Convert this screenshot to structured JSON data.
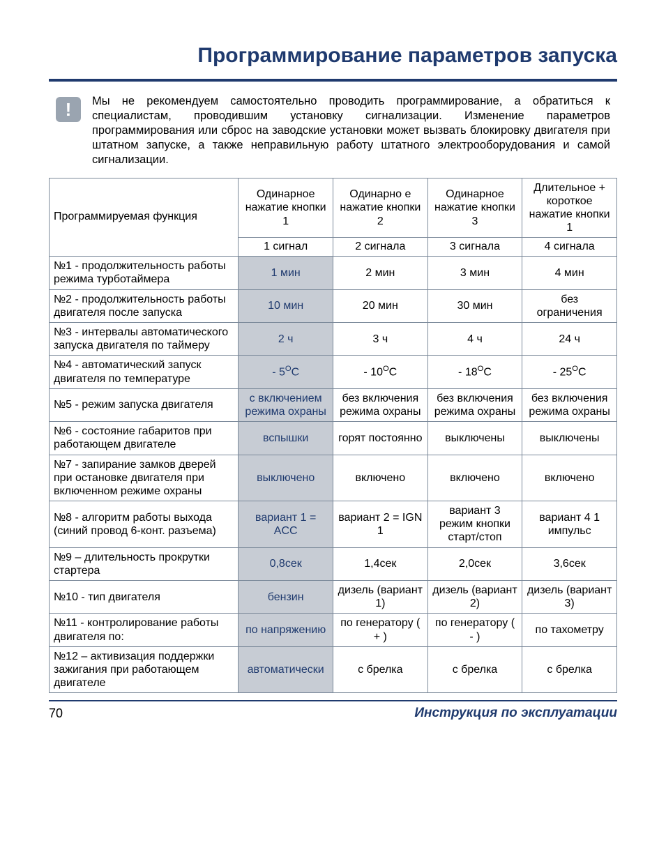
{
  "title": "Программирование параметров запуска",
  "notice": "Мы не рекомендуем самостоятельно проводить программирование, а обратиться к специалистам, проводившим установку сигнализации. Изменение параметров программирования или сброс на заводские установки может вызвать блокировку двигателя при штатном запуске, а также неправильную работу штатного электрооборудования и самой сигнализации.",
  "table": {
    "func_header": "Программируемая функция",
    "col_headers": [
      "Одинарное нажатие кнопки 1",
      "Одинарно е нажатие кнопки 2",
      "Одинарное нажатие кнопки 3",
      "Длительное + короткое нажатие кнопки 1"
    ],
    "signals": [
      "1 сигнал",
      "2 сигнала",
      "3 сигнала",
      "4 сигнала"
    ],
    "rows": [
      {
        "func": "№1 - продолжительность работы режима турботаймера",
        "opts": [
          "1 мин",
          "2 мин",
          "3 мин",
          "4 мин"
        ],
        "default": 0
      },
      {
        "func": "№2 - продолжительность работы двигателя после запуска",
        "opts": [
          "10 мин",
          "20 мин",
          "30 мин",
          "без ограничения"
        ],
        "default": 0
      },
      {
        "func": "№3 - интервалы автоматического запуска двигателя по таймеру",
        "opts": [
          "2 ч",
          "3 ч",
          "4 ч",
          "24 ч"
        ],
        "default": 0
      },
      {
        "func": "№4 - автоматический запуск двигателя по температуре",
        "opts": [
          "- 5°C",
          "- 10°C",
          "- 18°C",
          "- 25°C"
        ],
        "default": 0,
        "celsius": true
      },
      {
        "func": "№5 - режим запуска двигателя",
        "opts": [
          "с включением режима охраны",
          "без включения режима охраны",
          "без включения режима охраны",
          "без включения режима охраны"
        ],
        "default": 0
      },
      {
        "func": "№6 - состояние габаритов при работающем двигателе",
        "opts": [
          "вспышки",
          "горят постоянно",
          "выключены",
          "выключены"
        ],
        "default": 0
      },
      {
        "func": "№7 - запирание замков дверей при остановке двигателя при включенном режиме охраны",
        "opts": [
          "выключено",
          "включено",
          "включено",
          "включено"
        ],
        "default": 0
      },
      {
        "func": "№8 - алгоритм работы выхода (синий провод 6-конт. разъема)",
        "opts": [
          "вариант 1 = ACC",
          "вариант 2 = IGN 1",
          "вариант 3 режим кнопки старт/стоп",
          "вариант 4 1 импульс"
        ],
        "default": 0
      },
      {
        "func": "№9 – длительность прокрутки стартера",
        "opts": [
          "0,8сек",
          "1,4сек",
          "2,0сек",
          "3,6сек"
        ],
        "default": 0
      },
      {
        "func": "№10 - тип двигателя",
        "opts": [
          "бензин",
          "дизель (вариант 1)",
          "дизель (вариант 2)",
          "дизель (вариант 3)"
        ],
        "default": 0
      },
      {
        "func": "№11 - контролирование работы двигателя по:",
        "opts": [
          "по напряжению",
          "по генератору ( + )",
          "по генератору ( - )",
          "по тахометру"
        ],
        "default": 0
      },
      {
        "func": "№12 – активизация поддержки зажигания при работающем двигателе",
        "opts": [
          "автоматически",
          "с брелка",
          "с брелка",
          "с брелка"
        ],
        "default": 0
      }
    ]
  },
  "footer": {
    "page": "70",
    "label": "Инструкция по эксплуатации"
  },
  "colors": {
    "brand": "#1f3a6e",
    "cell_border": "#7a8899",
    "default_bg": "#c7ccd4",
    "icon_bg": "#9aa4b0"
  }
}
